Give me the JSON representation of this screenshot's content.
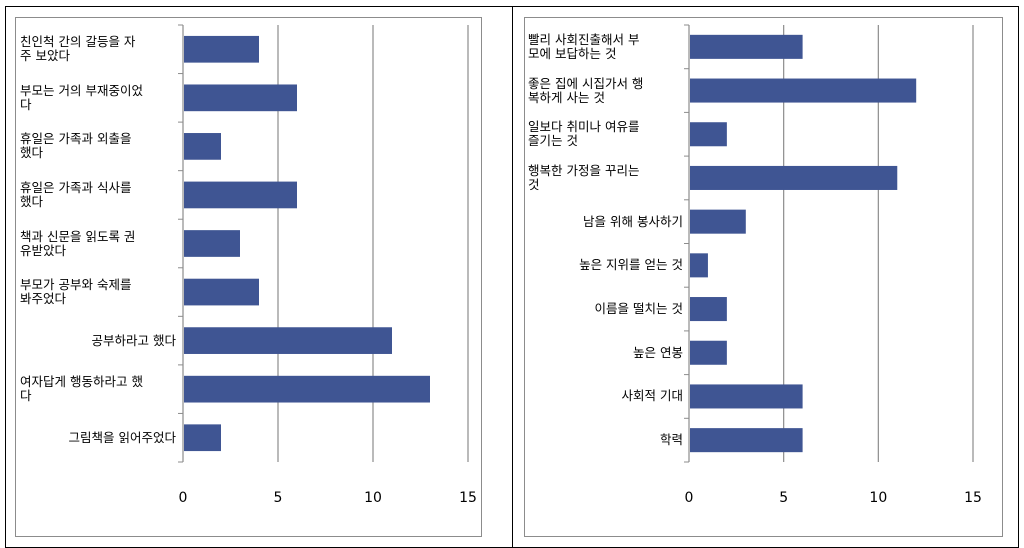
{
  "chart_data": [
    {
      "type": "bar",
      "orientation": "horizontal",
      "categories": [
        "친인척 간의 갈등을 자\n주 보았다",
        "부모는 거의 부재중이었\n다",
        "휴일은 가족과 외출을\n했다",
        "휴일은 가족과 식사를\n했다",
        "책과 신문을 읽도록 권\n유받았다",
        "부모가 공부와 숙제를\n봐주었다",
        "공부하라고 했다",
        "여자답게 행동하라고 했\n다",
        "그림책을 읽어주었다"
      ],
      "values": [
        4,
        6,
        2,
        6,
        3,
        4,
        11,
        13,
        2
      ],
      "xlim": [
        0,
        15
      ],
      "xticks": [
        "0",
        "5",
        "10",
        "15"
      ],
      "grid": "vertical",
      "bar_color": "#3f5593"
    },
    {
      "type": "bar",
      "orientation": "horizontal",
      "categories": [
        "빨리 사회진출해서 부\n모에 보답하는 것",
        "좋은 집에 시집가서 행\n복하게 사는 것",
        "일보다 취미나 여유를\n즐기는 것",
        "행복한 가정을 꾸리는\n것",
        "남을 위해 봉사하기",
        "높은 지위를 얻는 것",
        "이름을 떨치는 것",
        "높은 연봉",
        "사회적 기대",
        "학력"
      ],
      "values": [
        6,
        12,
        2,
        11,
        3,
        1,
        2,
        2,
        6,
        6
      ],
      "xlim": [
        0,
        15
      ],
      "xticks": [
        "0",
        "5",
        "10",
        "15"
      ],
      "grid": "vertical",
      "bar_color": "#3f5593"
    }
  ]
}
